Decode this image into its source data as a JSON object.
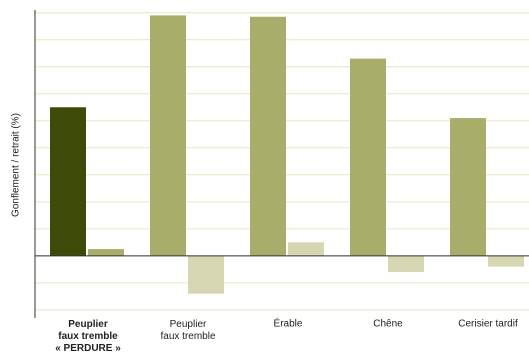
{
  "chart_data": {
    "type": "bar",
    "y_label": "Gonflement / retrait (%)",
    "categories": [
      "Peuplier\nfaux tremble\n« PERDURE »",
      "Peuplier\nfaux tremble",
      "Érable",
      "Chêne",
      "Cerisier tardif"
    ],
    "highlight_category": 0,
    "series": [
      {
        "colors": [
          "#3d4a08",
          "#a9ad6a",
          "#a9ad6a",
          "#a9ad6a",
          "#a9ad6a"
        ],
        "values": [
          5.5,
          8.9,
          8.85,
          7.3,
          5.1
        ]
      },
      {
        "colors": [
          "#a9ad6a",
          "#d6d7b2",
          "#d6d7b2",
          "#d6d7b2",
          "#d6d7b2"
        ],
        "values": [
          0.25,
          -1.4,
          0.5,
          -0.6,
          -0.4
        ]
      }
    ],
    "ylim": [
      -2.3,
      9.1
    ],
    "yticks": [
      -2,
      -1,
      0,
      1,
      2,
      3,
      4,
      5,
      6,
      7,
      8,
      9
    ],
    "grid": true
  }
}
